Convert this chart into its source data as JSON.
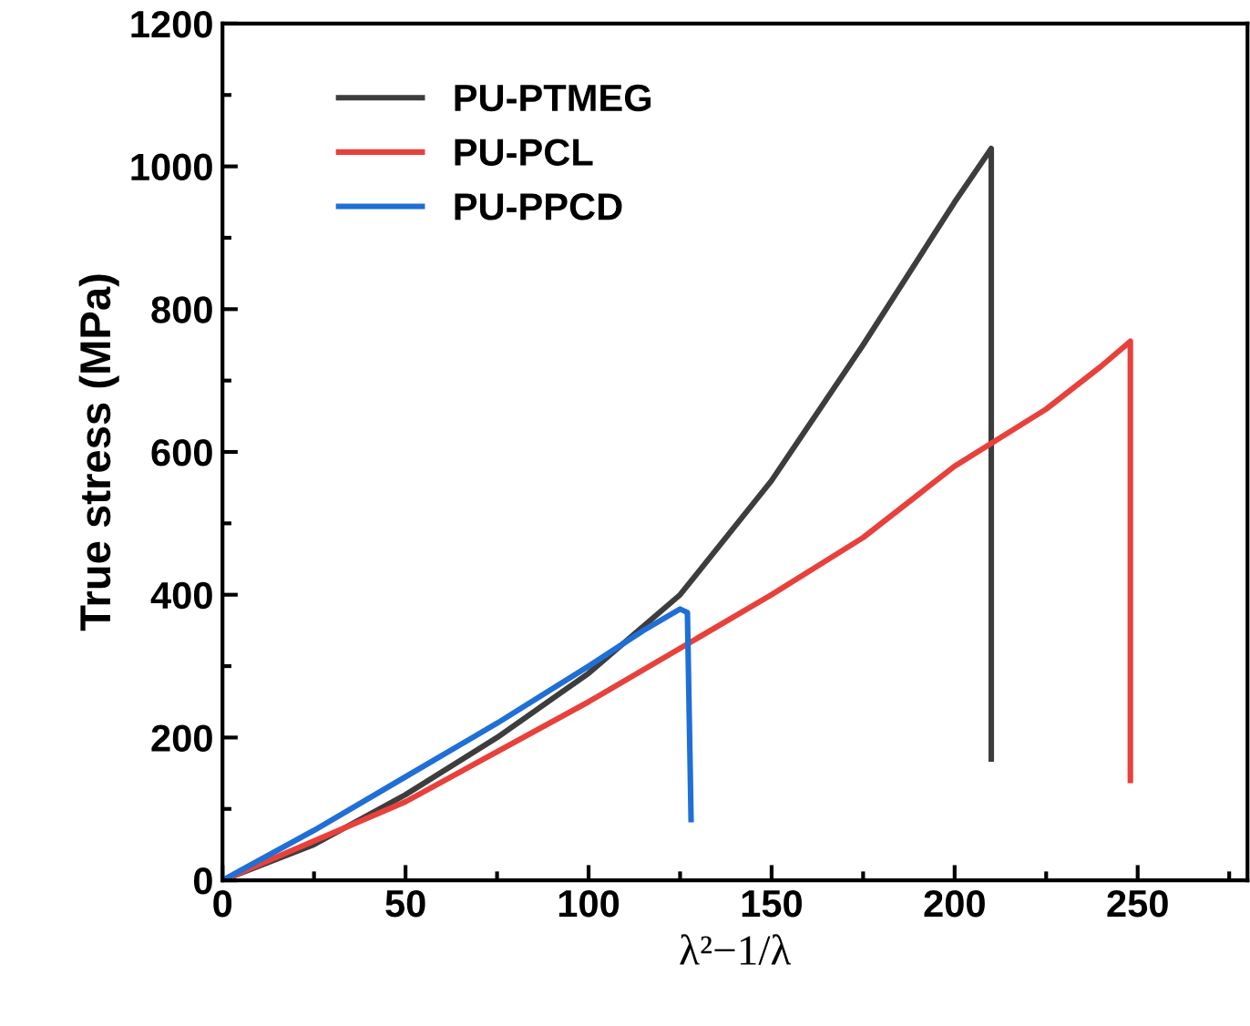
{
  "chart_data": {
    "type": "line",
    "xlabel": "λ²−1/λ",
    "ylabel": "True stress (MPa)",
    "xlim": [
      0,
      280
    ],
    "ylim": [
      0,
      1200
    ],
    "xticks": [
      0,
      50,
      100,
      150,
      200,
      250
    ],
    "yticks": [
      0,
      200,
      400,
      600,
      800,
      1000,
      1200
    ],
    "legend": "top left",
    "grid": false,
    "marker": "none",
    "line_style": "solid",
    "series": [
      {
        "name": "PU-PTMEG",
        "color": "#3d3d3d",
        "x": [
          0,
          25,
          50,
          75,
          100,
          125,
          150,
          175,
          200,
          210,
          210
        ],
        "values": [
          0,
          50,
          120,
          200,
          290,
          400,
          560,
          750,
          950,
          1025,
          170
        ]
      },
      {
        "name": "PU-PCL",
        "color": "#e8413c",
        "x": [
          0,
          50,
          100,
          150,
          175,
          190,
          200,
          225,
          240,
          248,
          248
        ],
        "values": [
          0,
          110,
          250,
          400,
          480,
          540,
          580,
          660,
          720,
          755,
          140
        ]
      },
      {
        "name": "PU-PPCD",
        "color": "#1f6fd6",
        "x": [
          0,
          25,
          50,
          75,
          100,
          115,
          125,
          127,
          128
        ],
        "values": [
          0,
          70,
          145,
          220,
          300,
          350,
          380,
          375,
          85
        ]
      }
    ]
  }
}
